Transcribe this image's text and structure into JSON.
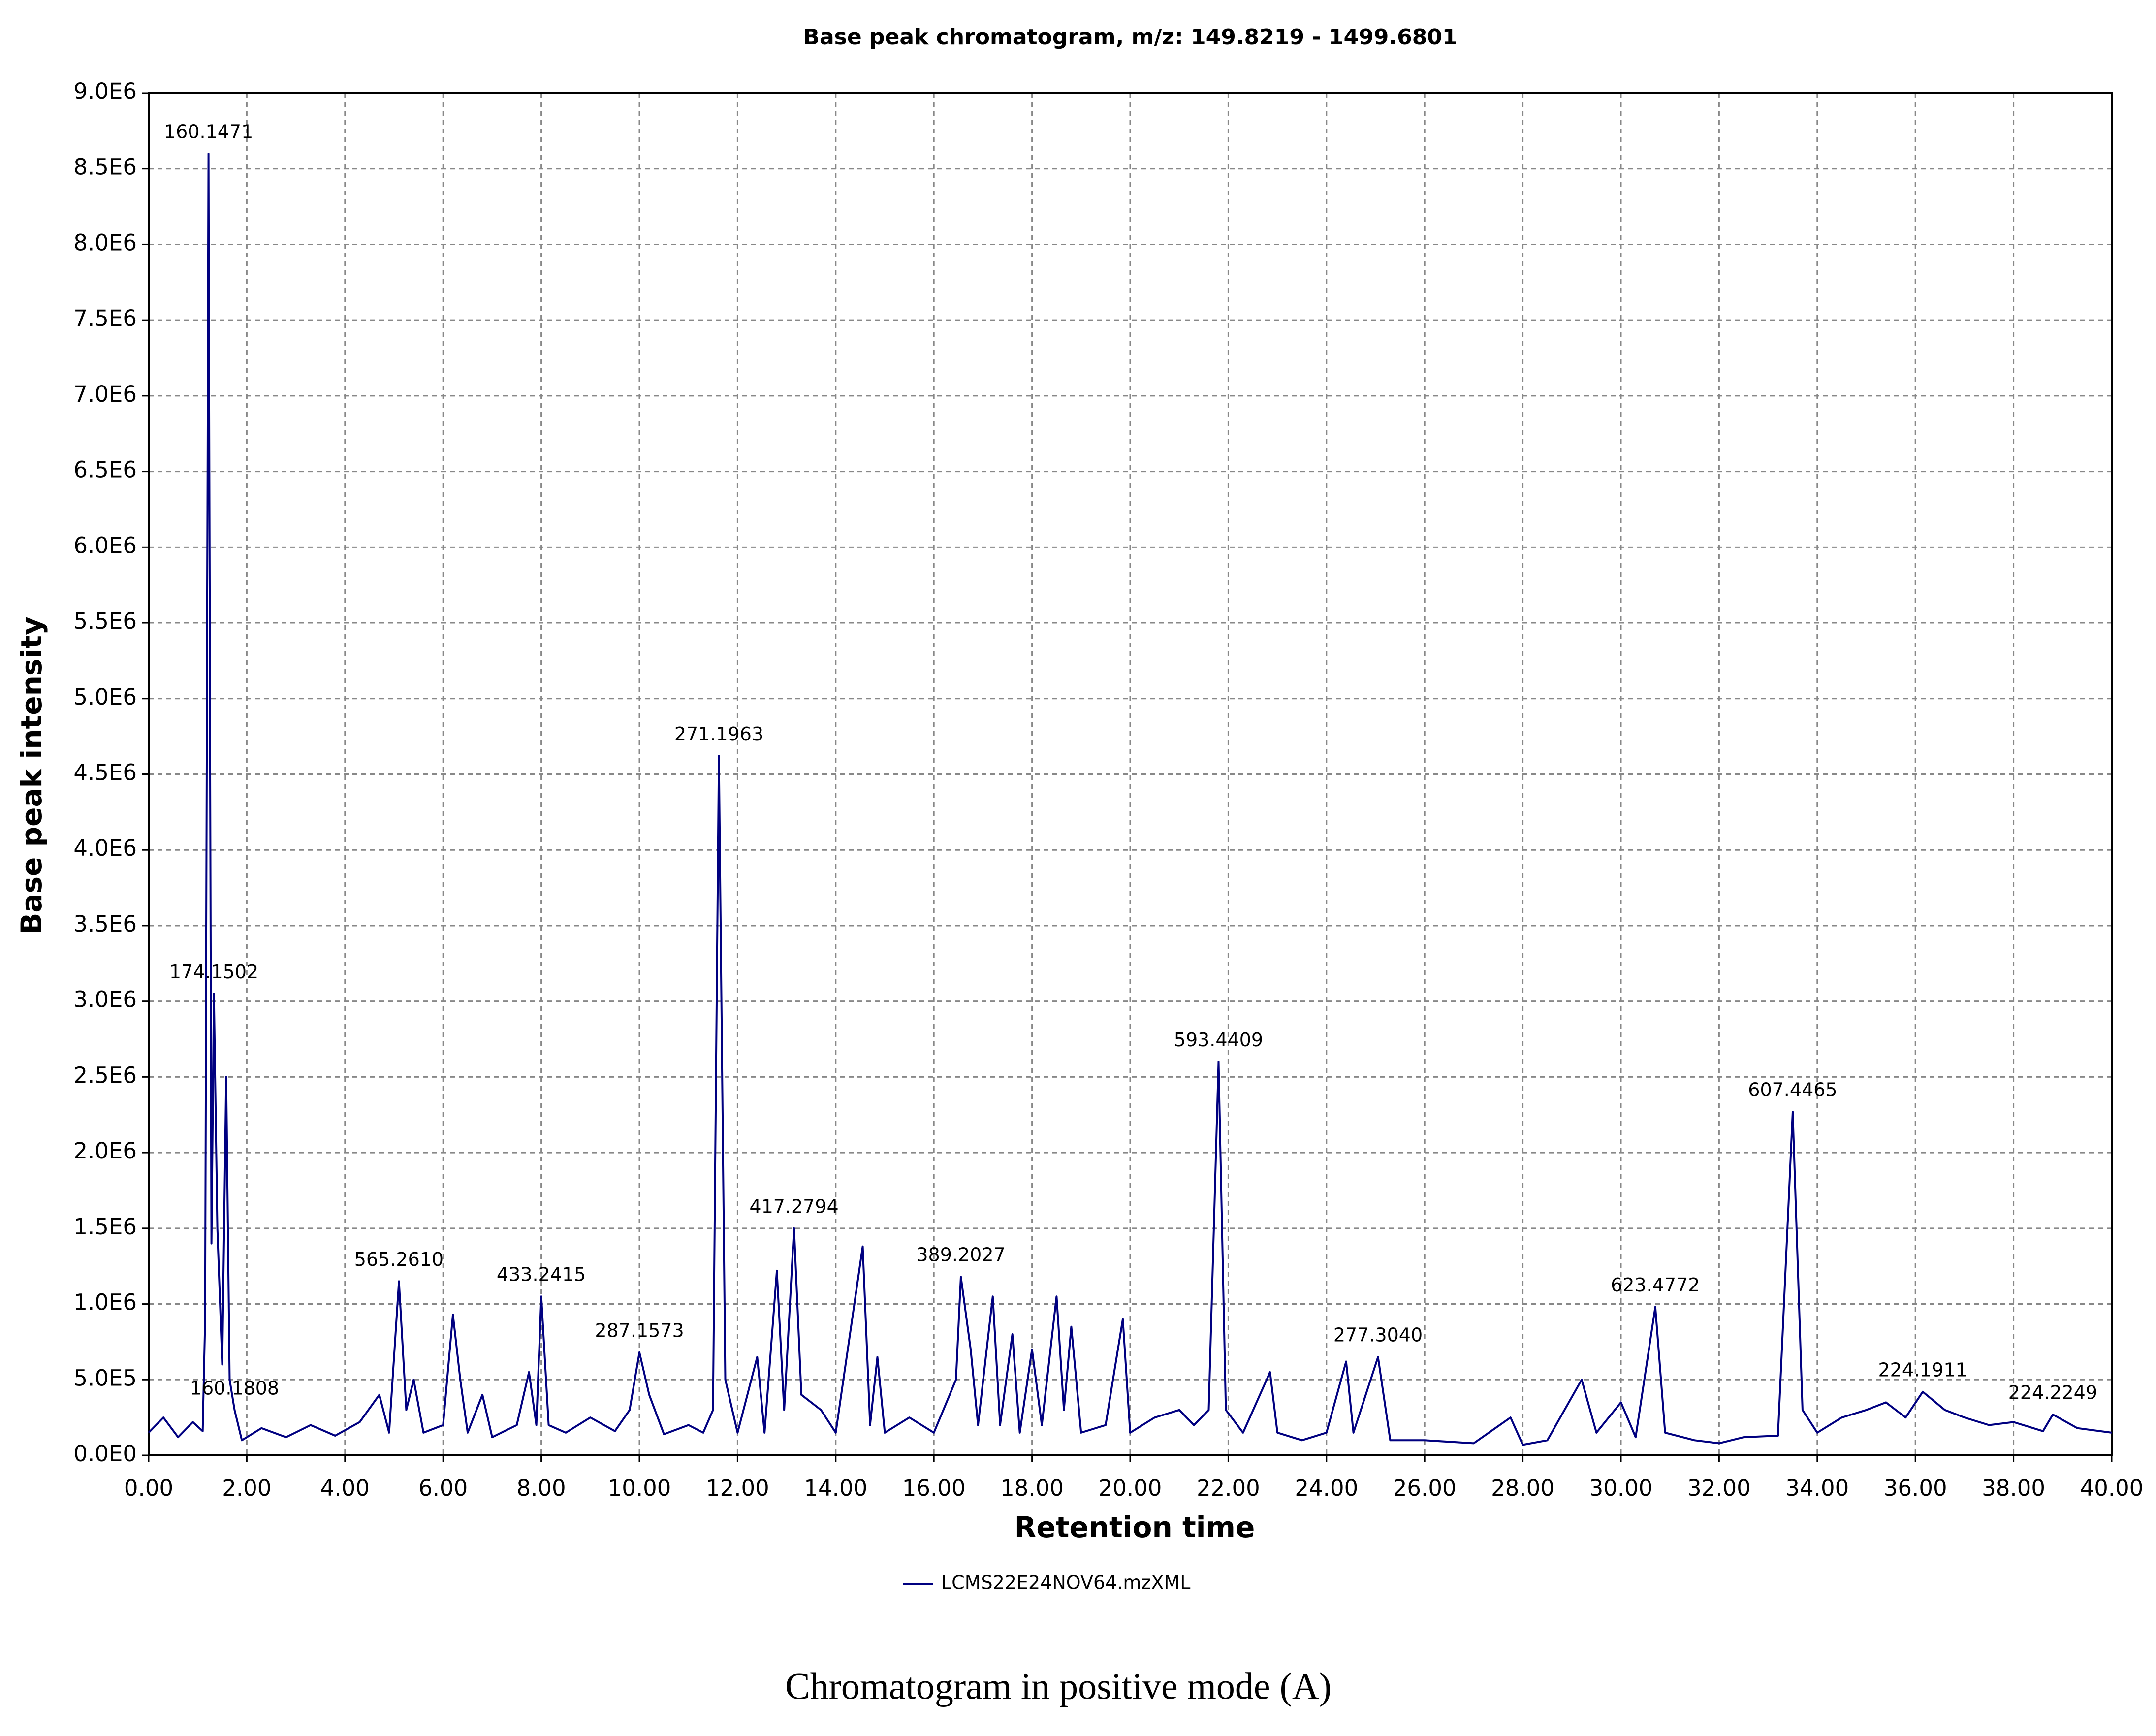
{
  "chart_data": {
    "type": "line",
    "title": "Base peak chromatogram, m/z: 149.8219 - 1499.6801",
    "x_label": "Retention time",
    "y_label": "Base peak intensity",
    "caption": "Chromatogram in positive mode (A)",
    "xlim": [
      0,
      40
    ],
    "ylim": [
      0,
      9000000
    ],
    "xticks": [
      {
        "value": 0,
        "label": "0.00"
      },
      {
        "value": 2,
        "label": "2.00"
      },
      {
        "value": 4,
        "label": "4.00"
      },
      {
        "value": 6,
        "label": "6.00"
      },
      {
        "value": 8,
        "label": "8.00"
      },
      {
        "value": 10,
        "label": "10.00"
      },
      {
        "value": 12,
        "label": "12.00"
      },
      {
        "value": 14,
        "label": "14.00"
      },
      {
        "value": 16,
        "label": "16.00"
      },
      {
        "value": 18,
        "label": "18.00"
      },
      {
        "value": 20,
        "label": "20.00"
      },
      {
        "value": 22,
        "label": "22.00"
      },
      {
        "value": 24,
        "label": "24.00"
      },
      {
        "value": 26,
        "label": "26.00"
      },
      {
        "value": 28,
        "label": "28.00"
      },
      {
        "value": 30,
        "label": "30.00"
      },
      {
        "value": 32,
        "label": "32.00"
      },
      {
        "value": 34,
        "label": "34.00"
      },
      {
        "value": 36,
        "label": "36.00"
      },
      {
        "value": 38,
        "label": "38.00"
      },
      {
        "value": 40,
        "label": "40.00"
      }
    ],
    "yticks": [
      {
        "value": 0,
        "label": "0.0E0"
      },
      {
        "value": 500000,
        "label": "5.0E5"
      },
      {
        "value": 1000000,
        "label": "1.0E6"
      },
      {
        "value": 1500000,
        "label": "1.5E6"
      },
      {
        "value": 2000000,
        "label": "2.0E6"
      },
      {
        "value": 2500000,
        "label": "2.5E6"
      },
      {
        "value": 3000000,
        "label": "3.0E6"
      },
      {
        "value": 3500000,
        "label": "3.5E6"
      },
      {
        "value": 4000000,
        "label": "4.0E6"
      },
      {
        "value": 4500000,
        "label": "4.5E6"
      },
      {
        "value": 5000000,
        "label": "5.0E6"
      },
      {
        "value": 5500000,
        "label": "5.5E6"
      },
      {
        "value": 6000000,
        "label": "6.0E6"
      },
      {
        "value": 6500000,
        "label": "6.5E6"
      },
      {
        "value": 7000000,
        "label": "7.0E6"
      },
      {
        "value": 7500000,
        "label": "7.5E6"
      },
      {
        "value": 8000000,
        "label": "8.0E6"
      },
      {
        "value": 8500000,
        "label": "8.5E6"
      },
      {
        "value": 9000000,
        "label": "9.0E6"
      }
    ],
    "grid": true,
    "legend": "bottom",
    "series": [
      {
        "name": "LCMS22E24NOV64.mzXML",
        "color": "#000080",
        "x": [
          0,
          0.3,
          0.6,
          0.9,
          1.1,
          1.15,
          1.22,
          1.28,
          1.33,
          1.4,
          1.5,
          1.58,
          1.65,
          1.75,
          1.9,
          2.3,
          2.8,
          3.3,
          3.8,
          4.3,
          4.7,
          4.9,
          5.1,
          5.25,
          5.4,
          5.6,
          6,
          6.2,
          6.35,
          6.5,
          6.8,
          7,
          7.5,
          7.75,
          7.9,
          8,
          8.15,
          8.5,
          9,
          9.5,
          9.8,
          10,
          10.2,
          10.5,
          11,
          11.3,
          11.5,
          11.62,
          11.75,
          12,
          12.4,
          12.55,
          12.8,
          12.95,
          13.15,
          13.3,
          13.7,
          14,
          14.55,
          14.7,
          14.85,
          15,
          15.5,
          16,
          16.45,
          16.55,
          16.75,
          16.9,
          17.2,
          17.35,
          17.6,
          17.75,
          18,
          18.2,
          18.5,
          18.65,
          18.8,
          19,
          19.5,
          19.85,
          20,
          20.5,
          21,
          21.3,
          21.6,
          21.8,
          21.95,
          22.3,
          22.85,
          23,
          23.5,
          24,
          24.4,
          24.55,
          25.05,
          25.3,
          26,
          27,
          27.75,
          28,
          28.5,
          29.2,
          29.5,
          30,
          30.3,
          30.7,
          30.9,
          31.5,
          32,
          32.5,
          33.2,
          33.5,
          33.7,
          34,
          34.5,
          35,
          35.4,
          35.8,
          36.15,
          36.6,
          37,
          37.5,
          38,
          38.6,
          38.8,
          39.3,
          40
        ],
        "values": [
          150000,
          250000,
          120000,
          220000,
          160000,
          900000,
          8600000,
          1400000,
          3050000,
          1500000,
          600000,
          2500000,
          500000,
          300000,
          100000,
          180000,
          120000,
          200000,
          130000,
          220000,
          400000,
          150000,
          1150000,
          300000,
          500000,
          150000,
          200000,
          930000,
          500000,
          150000,
          400000,
          120000,
          200000,
          550000,
          200000,
          1050000,
          200000,
          150000,
          250000,
          160000,
          300000,
          680000,
          400000,
          140000,
          200000,
          150000,
          300000,
          4620000,
          500000,
          150000,
          650000,
          150000,
          1220000,
          300000,
          1500000,
          400000,
          300000,
          150000,
          1380000,
          200000,
          650000,
          150000,
          250000,
          150000,
          500000,
          1180000,
          700000,
          200000,
          1050000,
          200000,
          800000,
          150000,
          700000,
          200000,
          1050000,
          300000,
          850000,
          150000,
          200000,
          900000,
          150000,
          250000,
          300000,
          200000,
          300000,
          2600000,
          300000,
          150000,
          550000,
          150000,
          100000,
          150000,
          620000,
          150000,
          650000,
          100000,
          100000,
          80000,
          250000,
          70000,
          100000,
          500000,
          150000,
          350000,
          120000,
          980000,
          150000,
          100000,
          80000,
          120000,
          130000,
          2270000,
          300000,
          150000,
          250000,
          300000,
          350000,
          250000,
          420000,
          300000,
          250000,
          200000,
          220000,
          160000,
          270000,
          180000,
          150000
        ]
      }
    ],
    "annotations": [
      {
        "text": "160.1471",
        "x": 1.22,
        "y": 8600000
      },
      {
        "text": "174.1502",
        "x": 1.33,
        "y": 3050000
      },
      {
        "text": "160.1808",
        "x": 1.75,
        "y": 300000
      },
      {
        "text": "565.2610",
        "x": 5.1,
        "y": 1150000
      },
      {
        "text": "433.2415",
        "x": 8,
        "y": 1050000
      },
      {
        "text": "287.1573",
        "x": 10,
        "y": 680000
      },
      {
        "text": "271.1963",
        "x": 11.62,
        "y": 4620000
      },
      {
        "text": "417.2794",
        "x": 13.15,
        "y": 1500000
      },
      {
        "text": "389.2027",
        "x": 16.55,
        "y": 1180000
      },
      {
        "text": "593.4409",
        "x": 21.8,
        "y": 2600000
      },
      {
        "text": "277.3040",
        "x": 25.05,
        "y": 650000
      },
      {
        "text": "623.4772",
        "x": 30.7,
        "y": 980000
      },
      {
        "text": "607.4465",
        "x": 33.5,
        "y": 2270000
      },
      {
        "text": "224.1911",
        "x": 36.15,
        "y": 420000
      },
      {
        "text": "224.2249",
        "x": 38.8,
        "y": 270000
      }
    ]
  }
}
